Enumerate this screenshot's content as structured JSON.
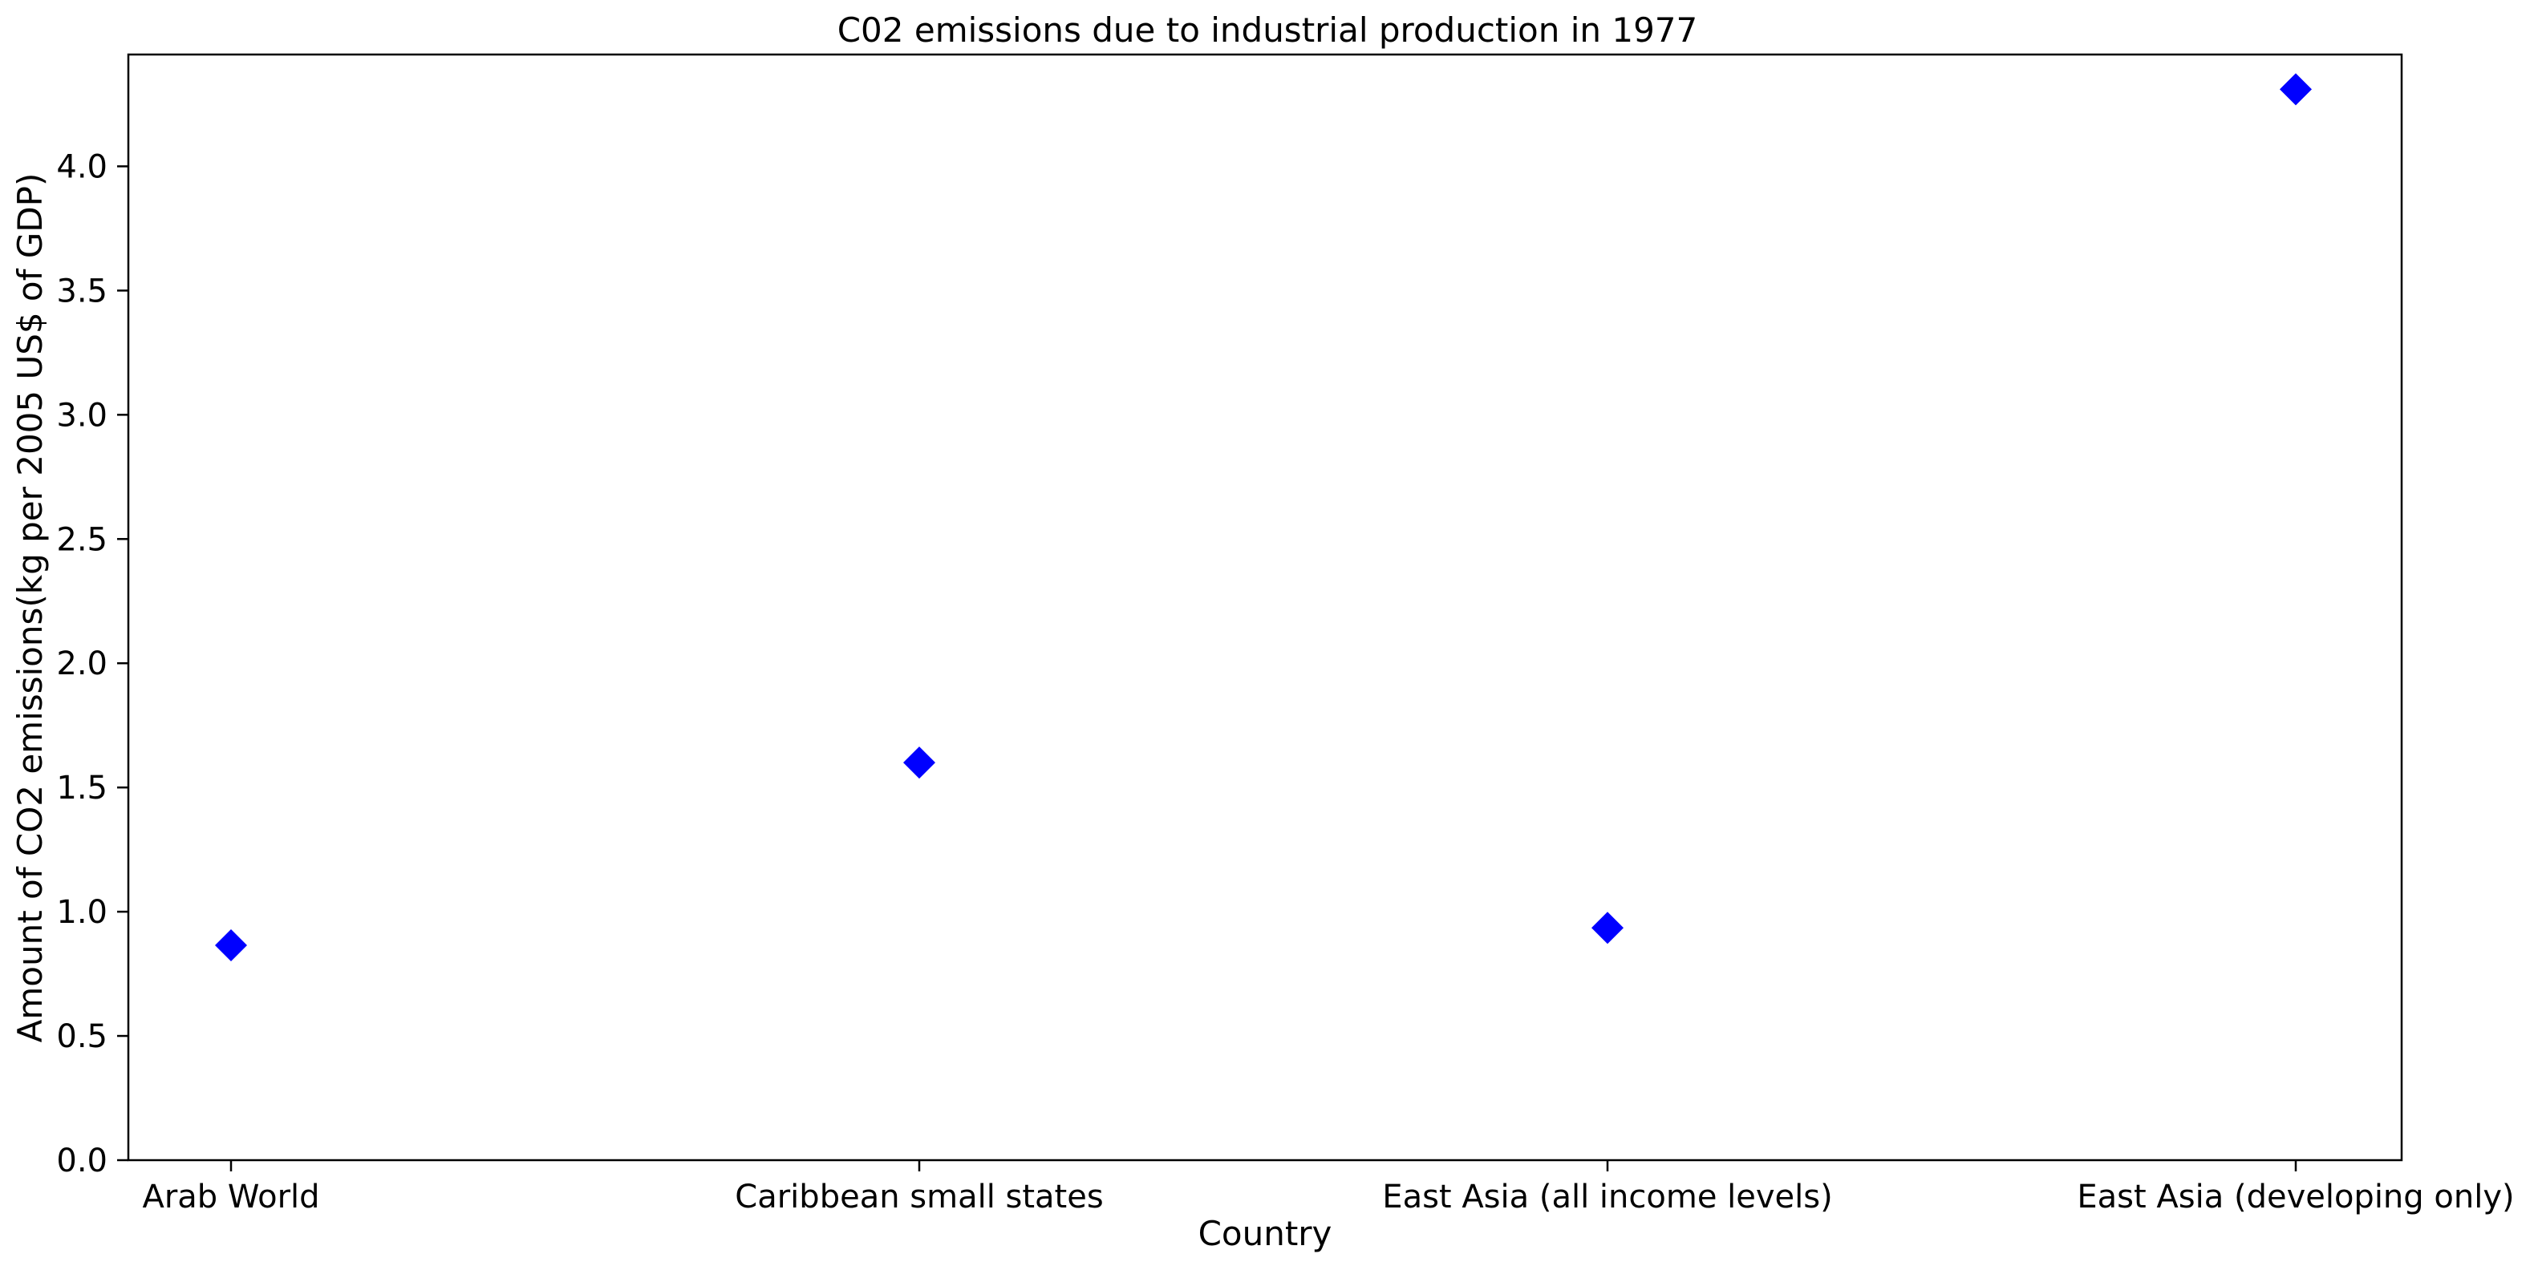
{
  "chart_data": {
    "type": "scatter",
    "title": "C02 emissions due to industrial production in 1977",
    "xlabel": "Country",
    "ylabel": "Amount of CO2 emissions(kg per 2005 US$ of GDP)",
    "categories": [
      "Arab World",
      "Caribbean small states",
      "East Asia (all income levels)",
      "East Asia (developing only)"
    ],
    "values": [
      0.865,
      1.6,
      0.935,
      4.31
    ],
    "ylim": [
      0,
      4.45
    ],
    "yticks": [
      0.0,
      0.5,
      1.0,
      1.5,
      2.0,
      2.5,
      3.0,
      3.5,
      4.0
    ],
    "ytick_labels": [
      "0.0",
      "0.5",
      "1.0",
      "1.5",
      "2.0",
      "2.5",
      "3.0",
      "3.5",
      "4.0"
    ],
    "marker": "diamond",
    "marker_color": "#0000ff",
    "grid": false,
    "legend": "none"
  }
}
